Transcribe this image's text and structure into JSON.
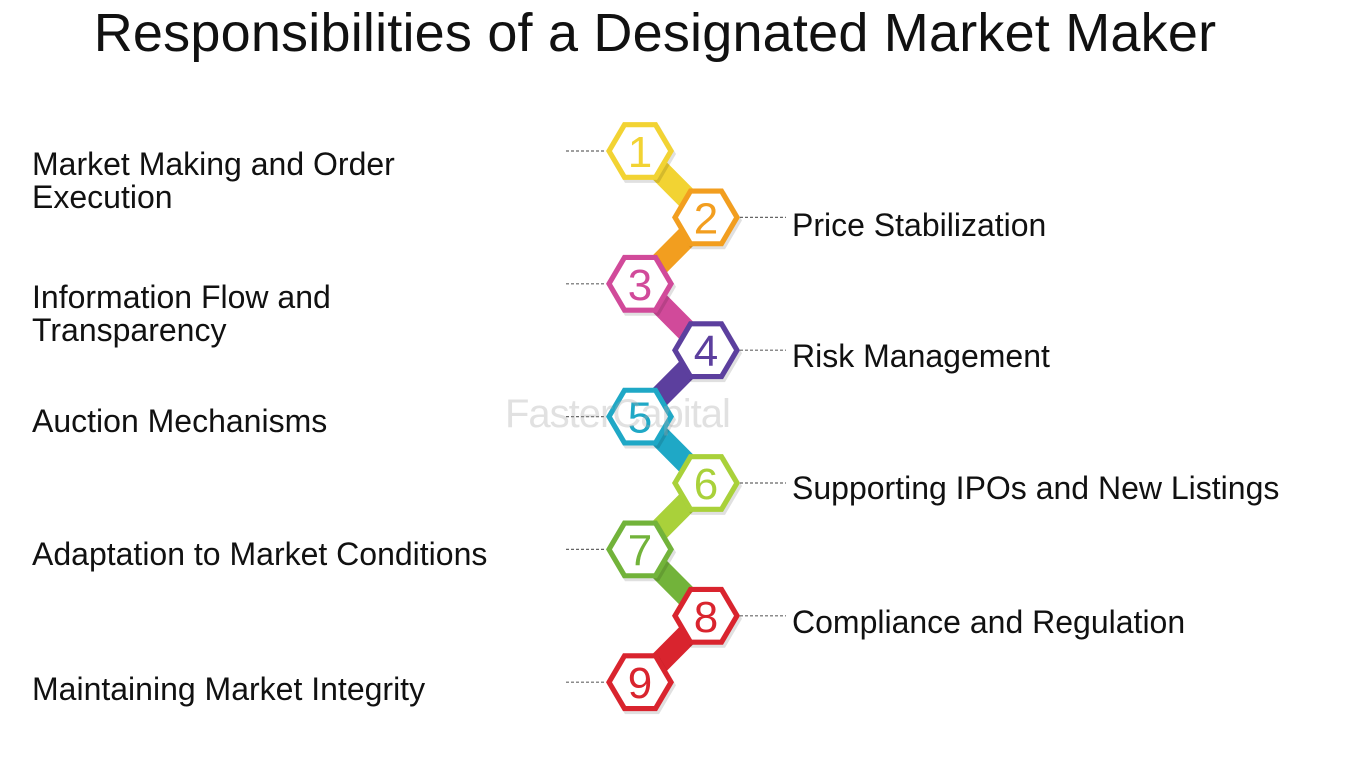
{
  "title": "Responsibilities of a Designated Market Maker",
  "steps": [
    {
      "number": "1",
      "label": "Market Making and Order Execution",
      "color": "#F2D333",
      "side": "left"
    },
    {
      "number": "2",
      "label": "Price Stabilization",
      "color": "#F29E1F",
      "side": "right"
    },
    {
      "number": "3",
      "label": "Information Flow and Transparency",
      "color": "#D14A9A",
      "side": "left"
    },
    {
      "number": "4",
      "label": "Risk Management",
      "color": "#5C3F9E",
      "side": "right"
    },
    {
      "number": "5",
      "label": "Auction Mechanisms",
      "color": "#1FA8C6",
      "side": "left"
    },
    {
      "number": "6",
      "label": "Supporting IPOs and New Listings",
      "color": "#A9D13A",
      "side": "right"
    },
    {
      "number": "7",
      "label": "Adaptation to Market Conditions",
      "color": "#72B33A",
      "side": "left"
    },
    {
      "number": "8",
      "label": "Compliance and Regulation",
      "color": "#D9242E",
      "side": "right"
    },
    {
      "number": "9",
      "label": "Maintaining Market Integrity",
      "color": "#D9242E",
      "side": "left"
    }
  ],
  "watermark": "FasterCapital"
}
